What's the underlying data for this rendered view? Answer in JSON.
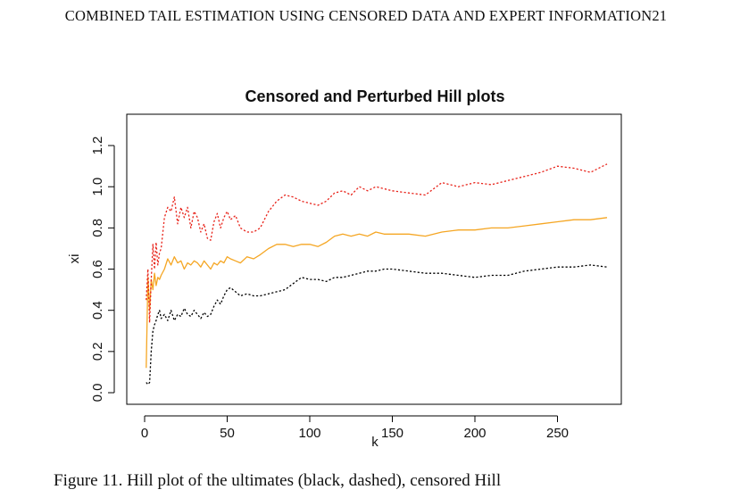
{
  "page": {
    "header": "COMBINED TAIL ESTIMATION USING CENSORED DATA AND EXPERT INFORMATION21",
    "caption": "Figure 11.  Hill plot of the ultimates (black, dashed), censored Hill"
  },
  "chart_data": {
    "type": "line",
    "title": "Censored and Perturbed Hill plots",
    "xlabel": "k",
    "ylabel": "xi",
    "xlim": [
      0,
      280
    ],
    "ylim": [
      0,
      1.3
    ],
    "xticks": [
      0,
      50,
      100,
      150,
      200,
      250
    ],
    "yticks": [
      0.0,
      0.2,
      0.4,
      0.6,
      0.8,
      1.0,
      1.2
    ],
    "grid": false,
    "series": [
      {
        "color": "#000000",
        "style": "dotted",
        "x": [
          1,
          2,
          3,
          4,
          5,
          6,
          7,
          8,
          9,
          10,
          12,
          14,
          16,
          18,
          20,
          22,
          24,
          26,
          28,
          30,
          32,
          34,
          36,
          38,
          40,
          42,
          44,
          46,
          48,
          50,
          52,
          55,
          58,
          62,
          66,
          70,
          75,
          80,
          85,
          90,
          95,
          100,
          105,
          110,
          115,
          120,
          125,
          130,
          135,
          140,
          145,
          150,
          160,
          170,
          180,
          190,
          200,
          210,
          220,
          230,
          240,
          250,
          260,
          270,
          280
        ],
        "y": [
          0.05,
          0.04,
          0.05,
          0.2,
          0.3,
          0.33,
          0.35,
          0.38,
          0.4,
          0.36,
          0.38,
          0.35,
          0.4,
          0.35,
          0.38,
          0.37,
          0.41,
          0.38,
          0.37,
          0.4,
          0.38,
          0.36,
          0.39,
          0.37,
          0.38,
          0.42,
          0.45,
          0.43,
          0.47,
          0.5,
          0.51,
          0.49,
          0.47,
          0.48,
          0.47,
          0.47,
          0.48,
          0.49,
          0.5,
          0.53,
          0.56,
          0.55,
          0.55,
          0.54,
          0.56,
          0.56,
          0.57,
          0.58,
          0.59,
          0.59,
          0.6,
          0.6,
          0.59,
          0.58,
          0.58,
          0.57,
          0.56,
          0.57,
          0.57,
          0.59,
          0.6,
          0.61,
          0.61,
          0.62,
          0.61
        ]
      },
      {
        "color": "#f5a623",
        "style": "solid",
        "x": [
          1,
          2,
          3,
          4,
          5,
          6,
          7,
          8,
          9,
          10,
          12,
          14,
          16,
          18,
          20,
          22,
          24,
          26,
          28,
          30,
          32,
          34,
          36,
          38,
          40,
          42,
          44,
          46,
          48,
          50,
          52,
          55,
          58,
          62,
          66,
          70,
          75,
          80,
          85,
          90,
          95,
          100,
          105,
          110,
          115,
          120,
          125,
          130,
          135,
          140,
          145,
          150,
          160,
          170,
          180,
          190,
          200,
          210,
          220,
          230,
          240,
          250,
          260,
          270,
          280
        ],
        "y": [
          0.12,
          0.56,
          0.4,
          0.55,
          0.5,
          0.58,
          0.52,
          0.56,
          0.55,
          0.57,
          0.6,
          0.65,
          0.62,
          0.66,
          0.63,
          0.64,
          0.6,
          0.63,
          0.62,
          0.64,
          0.63,
          0.61,
          0.64,
          0.62,
          0.6,
          0.63,
          0.62,
          0.64,
          0.63,
          0.66,
          0.65,
          0.64,
          0.63,
          0.66,
          0.65,
          0.67,
          0.7,
          0.72,
          0.72,
          0.71,
          0.72,
          0.72,
          0.71,
          0.73,
          0.76,
          0.77,
          0.76,
          0.77,
          0.76,
          0.78,
          0.77,
          0.77,
          0.77,
          0.76,
          0.78,
          0.79,
          0.79,
          0.8,
          0.8,
          0.81,
          0.82,
          0.83,
          0.84,
          0.84,
          0.85
        ]
      },
      {
        "color": "#e8231a",
        "style": "dotted",
        "x": [
          1,
          2,
          3,
          4,
          5,
          6,
          7,
          8,
          9,
          10,
          12,
          14,
          16,
          18,
          20,
          22,
          24,
          26,
          28,
          30,
          32,
          34,
          36,
          38,
          40,
          42,
          44,
          46,
          48,
          50,
          52,
          55,
          58,
          62,
          66,
          70,
          75,
          80,
          85,
          90,
          95,
          100,
          105,
          110,
          115,
          120,
          125,
          130,
          135,
          140,
          145,
          150,
          160,
          170,
          180,
          190,
          200,
          210,
          220,
          230,
          240,
          250,
          260,
          270,
          280
        ],
        "y": [
          0.45,
          0.6,
          0.34,
          0.55,
          0.72,
          0.6,
          0.73,
          0.62,
          0.68,
          0.7,
          0.85,
          0.9,
          0.88,
          0.95,
          0.82,
          0.9,
          0.85,
          0.9,
          0.8,
          0.88,
          0.85,
          0.78,
          0.82,
          0.75,
          0.74,
          0.83,
          0.87,
          0.8,
          0.85,
          0.88,
          0.84,
          0.86,
          0.8,
          0.78,
          0.78,
          0.8,
          0.88,
          0.93,
          0.96,
          0.95,
          0.93,
          0.92,
          0.91,
          0.93,
          0.97,
          0.98,
          0.96,
          1.0,
          0.98,
          1.0,
          0.99,
          0.98,
          0.97,
          0.96,
          1.02,
          1.0,
          1.02,
          1.01,
          1.03,
          1.05,
          1.07,
          1.1,
          1.09,
          1.07,
          1.11
        ]
      }
    ]
  }
}
